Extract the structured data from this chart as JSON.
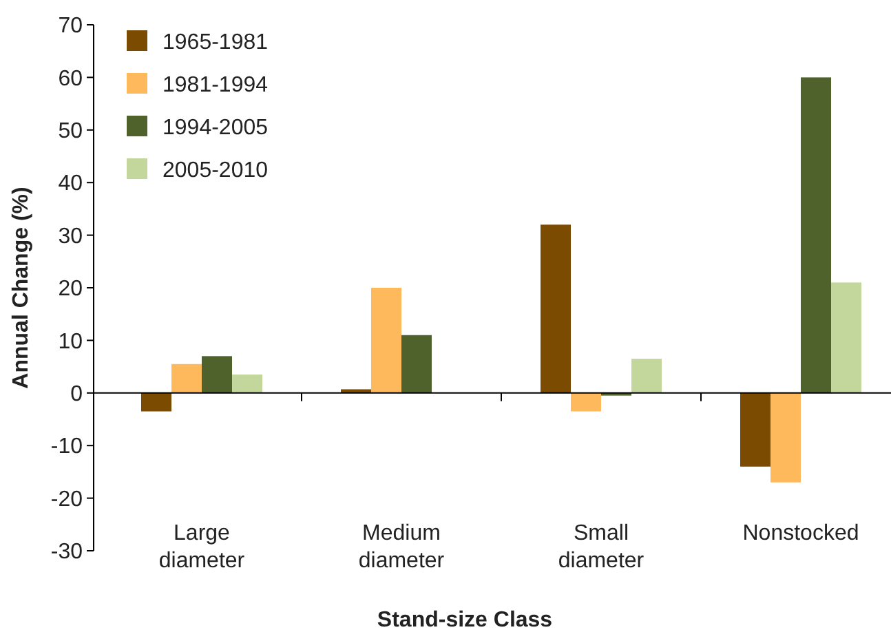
{
  "chart_data": {
    "type": "bar",
    "xlabel": "Stand-size Class",
    "ylabel": "Annual Change (%)",
    "categories": [
      "Large diameter",
      "Medium diameter",
      "Small diameter",
      "Nonstocked"
    ],
    "series": [
      {
        "name": "1965-1981",
        "color": "#7b4b02",
        "values": [
          -3.5,
          0.7,
          32,
          -14
        ]
      },
      {
        "name": "1981-1994",
        "color": "#fdb95c",
        "values": [
          5.5,
          20,
          -3.5,
          -17
        ]
      },
      {
        "name": "1994-2005",
        "color": "#4f622b",
        "values": [
          7,
          11,
          -0.5,
          60
        ]
      },
      {
        "name": "2005-2010",
        "color": "#c3d69b",
        "values": [
          3.5,
          null,
          6.5,
          21
        ]
      }
    ],
    "ylim": [
      -30,
      70
    ],
    "yticks": [
      -30,
      -20,
      -10,
      0,
      10,
      20,
      30,
      40,
      50,
      60,
      70
    ],
    "legend": "top left"
  }
}
